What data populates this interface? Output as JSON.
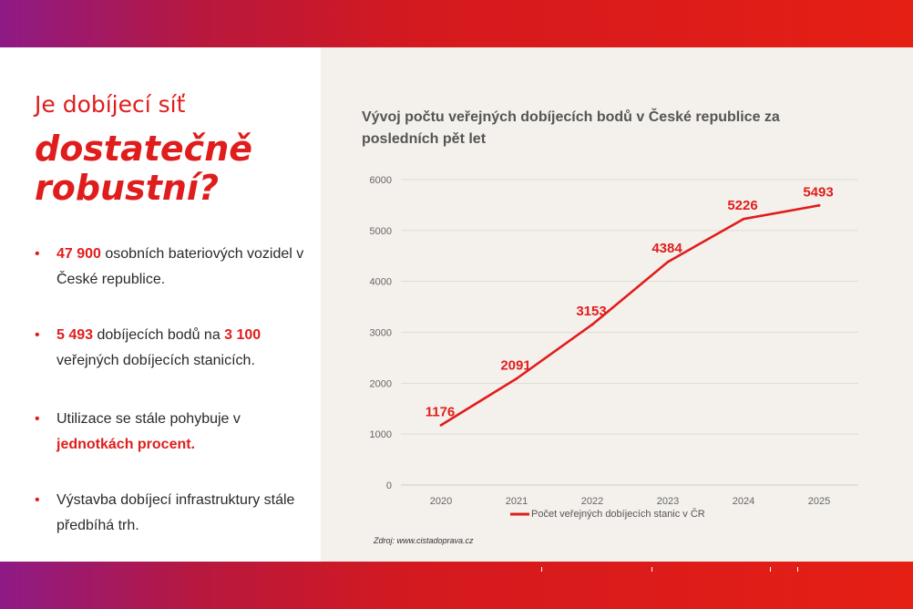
{
  "headline": {
    "line1": "Je dobíjecí síť",
    "line2a": "dostatečně",
    "line2b": "robustní?"
  },
  "bullets": [
    {
      "bold": "47 900",
      "text_a": " osobních bateriových vozidel v České republice.",
      "bold2": "",
      "text_b": ""
    },
    {
      "bold": "5 493",
      "text_a": " dobíjecích bodů na ",
      "bold2": "3 100",
      "text_b": " veřejných dobíjecích stanicích."
    },
    {
      "bold": "",
      "text_a": "Utilizace se stále pohybuje v ",
      "bold2": "jednotkách procent.",
      "text_b": ""
    },
    {
      "bold": "",
      "text_a": "Výstavba dobíjecí infrastruktury stále předbíhá trh.",
      "bold2": "",
      "text_b": ""
    }
  ],
  "bullet_symbol": "•",
  "source": "Zdroj: www.cistadoprava.cz",
  "colors": {
    "accent": "#e01d1d",
    "gradient_start": "#8e1a86",
    "gradient_end": "#e51f14"
  },
  "chart_data": {
    "type": "line",
    "title": "Vývoj počtu veřejných dobíjecích bodů v České republice za posledních pět let",
    "categories": [
      "2020",
      "2021",
      "2022",
      "2023",
      "2024",
      "2025"
    ],
    "series": [
      {
        "name": "Počet veřejných dobíjecích stanic v ČR",
        "values": [
          1176,
          2091,
          3153,
          4384,
          5226,
          5493
        ],
        "color": "#e01d1d"
      }
    ],
    "ylim": [
      0,
      6000
    ],
    "yticks": [
      0,
      1000,
      2000,
      3000,
      4000,
      5000,
      6000
    ],
    "grid": true,
    "legend": "bottom"
  }
}
